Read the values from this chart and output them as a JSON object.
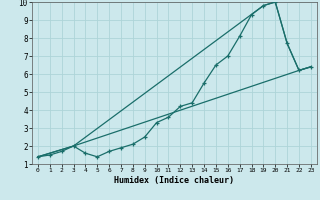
{
  "xlabel": "Humidex (Indice chaleur)",
  "xlim": [
    -0.5,
    23.5
  ],
  "ylim": [
    1,
    10
  ],
  "xticks": [
    0,
    1,
    2,
    3,
    4,
    5,
    6,
    7,
    8,
    9,
    10,
    11,
    12,
    13,
    14,
    15,
    16,
    17,
    18,
    19,
    20,
    21,
    22,
    23
  ],
  "yticks": [
    1,
    2,
    3,
    4,
    5,
    6,
    7,
    8,
    9,
    10
  ],
  "bg_color": "#cce8ec",
  "line_color": "#1a6e6a",
  "grid_color": "#aed4d8",
  "curve1_x": [
    0,
    1,
    2,
    3,
    4,
    5,
    6,
    7,
    8,
    9,
    10,
    11,
    12,
    13,
    14,
    15,
    16,
    17,
    18,
    19,
    20,
    21,
    22,
    23
  ],
  "curve1_y": [
    1.4,
    1.5,
    1.7,
    2.0,
    1.6,
    1.4,
    1.7,
    1.9,
    2.1,
    2.5,
    3.3,
    3.6,
    4.2,
    4.4,
    5.5,
    6.5,
    7.0,
    8.1,
    9.3,
    9.8,
    10.0,
    7.7,
    6.2,
    6.4
  ],
  "curve2_x": [
    0,
    3,
    22,
    23
  ],
  "curve2_y": [
    1.4,
    2.0,
    6.2,
    6.4
  ],
  "curve3_x": [
    0,
    3,
    19,
    20,
    21,
    22,
    23
  ],
  "curve3_y": [
    1.4,
    2.0,
    9.8,
    10.0,
    7.7,
    6.2,
    6.4
  ]
}
